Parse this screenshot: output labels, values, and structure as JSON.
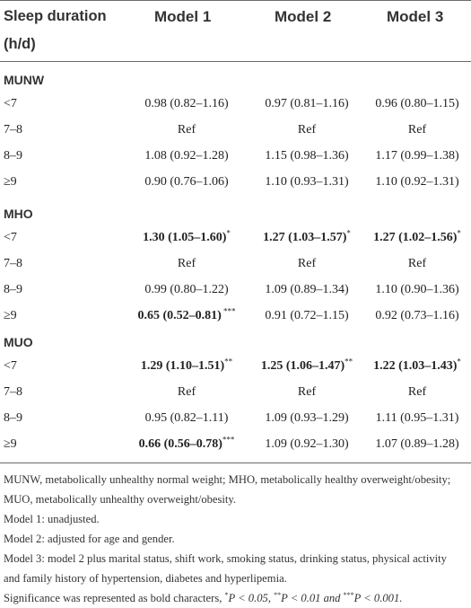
{
  "header": {
    "col0_line1": "Sleep duration",
    "col0_line2": "(h/d)",
    "model1": "Model 1",
    "model2": "Model 2",
    "model3": "Model 3"
  },
  "sections": [
    {
      "title": "MUNW",
      "rows": [
        {
          "label": "<7",
          "m1": "0.98 (0.82–1.16)",
          "m1_sig": "",
          "m1_bold": false,
          "m2": "0.97 (0.81–1.16)",
          "m2_sig": "",
          "m2_bold": false,
          "m3": "0.96 (0.80–1.15)",
          "m3_sig": "",
          "m3_bold": false
        },
        {
          "label": "7–8",
          "m1": "Ref",
          "m1_sig": "",
          "m1_bold": false,
          "m2": "Ref",
          "m2_sig": "",
          "m2_bold": false,
          "m3": "Ref",
          "m3_sig": "",
          "m3_bold": false
        },
        {
          "label": "8–9",
          "m1": "1.08 (0.92–1.28)",
          "m1_sig": "",
          "m1_bold": false,
          "m2": "1.15 (0.98–1.36)",
          "m2_sig": "",
          "m2_bold": false,
          "m3": "1.17 (0.99–1.38)",
          "m3_sig": "",
          "m3_bold": false
        },
        {
          "label": "≥9",
          "m1": "0.90 (0.76–1.06)",
          "m1_sig": "",
          "m1_bold": false,
          "m2": "1.10 (0.93–1.31)",
          "m2_sig": "",
          "m2_bold": false,
          "m3": "1.10 (0.92–1.31)",
          "m3_sig": "",
          "m3_bold": false
        }
      ]
    },
    {
      "title": "MHO",
      "rows": [
        {
          "label": "<7",
          "m1": "1.30 (1.05–1.60)",
          "m1_sig": "*",
          "m1_bold": true,
          "m2": "1.27 (1.03–1.57)",
          "m2_sig": "*",
          "m2_bold": true,
          "m3": "1.27 (1.02–1.56)",
          "m3_sig": "*",
          "m3_bold": true
        },
        {
          "label": "7–8",
          "m1": "Ref",
          "m1_sig": "",
          "m1_bold": false,
          "m2": "Ref",
          "m2_sig": "",
          "m2_bold": false,
          "m3": "Ref",
          "m3_sig": "",
          "m3_bold": false
        },
        {
          "label": "8–9",
          "m1": "0.99 (0.80–1.22)",
          "m1_sig": "",
          "m1_bold": false,
          "m2": "1.09 (0.89–1.34)",
          "m2_sig": "",
          "m2_bold": false,
          "m3": "1.10 (0.90–1.36)",
          "m3_sig": "",
          "m3_bold": false
        },
        {
          "label": "≥9",
          "m1": "0.65 (0.52–0.81)",
          "m1_sig": " ***",
          "m1_bold": true,
          "m2": "0.91 (0.72–1.15)",
          "m2_sig": "",
          "m2_bold": false,
          "m3": "0.92 (0.73–1.16)",
          "m3_sig": "",
          "m3_bold": false
        }
      ]
    },
    {
      "title": "MUO",
      "rows": [
        {
          "label": "<7",
          "m1": "1.29 (1.10–1.51)",
          "m1_sig": "**",
          "m1_bold": true,
          "m2": "1.25 (1.06–1.47)",
          "m2_sig": "**",
          "m2_bold": true,
          "m3": "1.22 (1.03–1.43)",
          "m3_sig": "*",
          "m3_bold": true
        },
        {
          "label": "7–8",
          "m1": "Ref",
          "m1_sig": "",
          "m1_bold": false,
          "m2": "Ref",
          "m2_sig": "",
          "m2_bold": false,
          "m3": "Ref",
          "m3_sig": "",
          "m3_bold": false
        },
        {
          "label": "8–9",
          "m1": "0.95 (0.82–1.11)",
          "m1_sig": "",
          "m1_bold": false,
          "m2": "1.09 (0.93–1.29)",
          "m2_sig": "",
          "m2_bold": false,
          "m3": "1.11 (0.95–1.31)",
          "m3_sig": "",
          "m3_bold": false
        },
        {
          "label": "≥9",
          "m1": "0.66 (0.56–0.78)",
          "m1_sig": "***",
          "m1_bold": true,
          "m2": "1.09 (0.92–1.30)",
          "m2_sig": "",
          "m2_bold": false,
          "m3": "1.07 (0.89–1.28)",
          "m3_sig": "",
          "m3_bold": false
        }
      ]
    }
  ],
  "notes": {
    "abbrev": "MUNW, metabolically unhealthy normal weight; MHO, metabolically healthy overweight/obesity; MUO, metabolically unhealthy overweight/obesity.",
    "model1": "Model 1: unadjusted.",
    "model2": "Model 2: adjusted for age and gender.",
    "model3": "Model 3: model 2 plus marital status, shift work, smoking status, drinking status, physical activity and family history of hypertension, diabetes and hyperlipemia.",
    "sig_prefix": "Significance was represented as bold characters, ",
    "sig_star1": "*",
    "sig_p1": "P < 0.05, ",
    "sig_star2": "**",
    "sig_p2": "P < 0.01 and ",
    "sig_star3": "***",
    "sig_p3": "P < 0.001."
  }
}
